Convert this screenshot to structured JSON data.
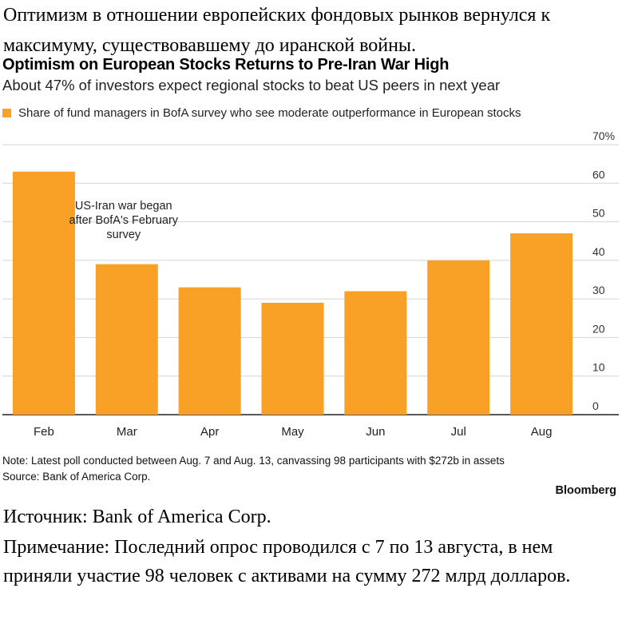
{
  "article": {
    "heading": "Оптимизм в отношении европейских фондовых рынков вернулся к максимуму, существовавшему до иранской войны.",
    "source": "Источник: Bank of America Corp.",
    "note": "Примечание: Последний опрос проводился с 7 по 13 августа, в нем приняли участие 98 человек с активами на сумму 272 млрд долларов."
  },
  "chart_data": {
    "type": "bar",
    "title": "Optimism on European Stocks Returns to Pre-Iran War High",
    "subtitle": "About 47% of investors expect regional stocks to beat US peers in next year",
    "legend": "Share of fund managers in BofA survey who see moderate outperformance in European stocks",
    "categories": [
      "Feb",
      "Mar",
      "Apr",
      "May",
      "Jun",
      "Jul",
      "Aug"
    ],
    "values": [
      63,
      39,
      33,
      29,
      32,
      40,
      47
    ],
    "ylim": [
      0,
      70
    ],
    "yticks": [
      "0",
      "10",
      "20",
      "30",
      "40",
      "50",
      "60",
      "70%"
    ],
    "y_axis_side": "right",
    "grid": true,
    "bar_color": "#F9A127",
    "annotation": [
      "US-Iran war began",
      "after BofA's February",
      "survey"
    ],
    "note": "Note: Latest poll conducted between Aug. 7 and Aug. 13, canvassing 98 participants with $272b in assets",
    "source": "Source: Bank of America Corp.",
    "brand": "Bloomberg"
  }
}
